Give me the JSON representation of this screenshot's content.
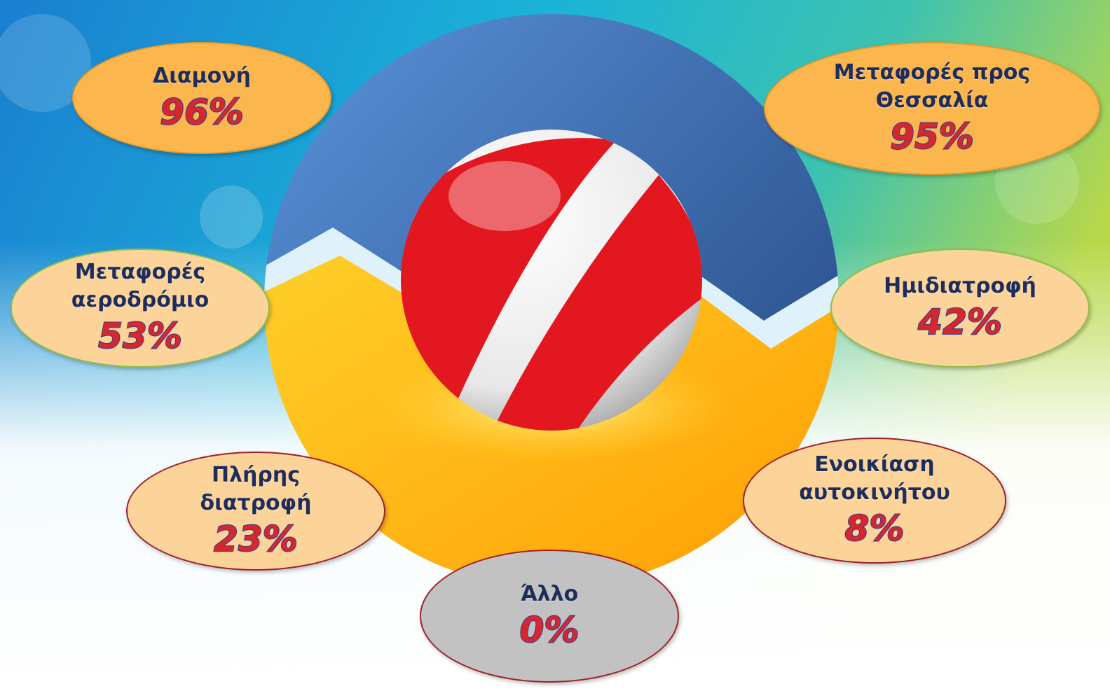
{
  "items": [
    {
      "label": [
        "Διαμονή"
      ],
      "value": "96%"
    },
    {
      "label": [
        "Μεταφορές προς",
        "Θεσσαλία"
      ],
      "value": "95%"
    },
    {
      "label": [
        "Μεταφορές",
        "αεροδρόμιο"
      ],
      "value": "53%"
    },
    {
      "label": [
        "Ημιδιατροφή"
      ],
      "value": "42%"
    },
    {
      "label": [
        "Πλήρης",
        "διατροφή"
      ],
      "value": "23%"
    },
    {
      "label": [
        "Ενοικίαση",
        "αυτοκινήτου"
      ],
      "value": "8%"
    },
    {
      "label": [
        "Άλλο"
      ],
      "value": "0%"
    }
  ]
}
